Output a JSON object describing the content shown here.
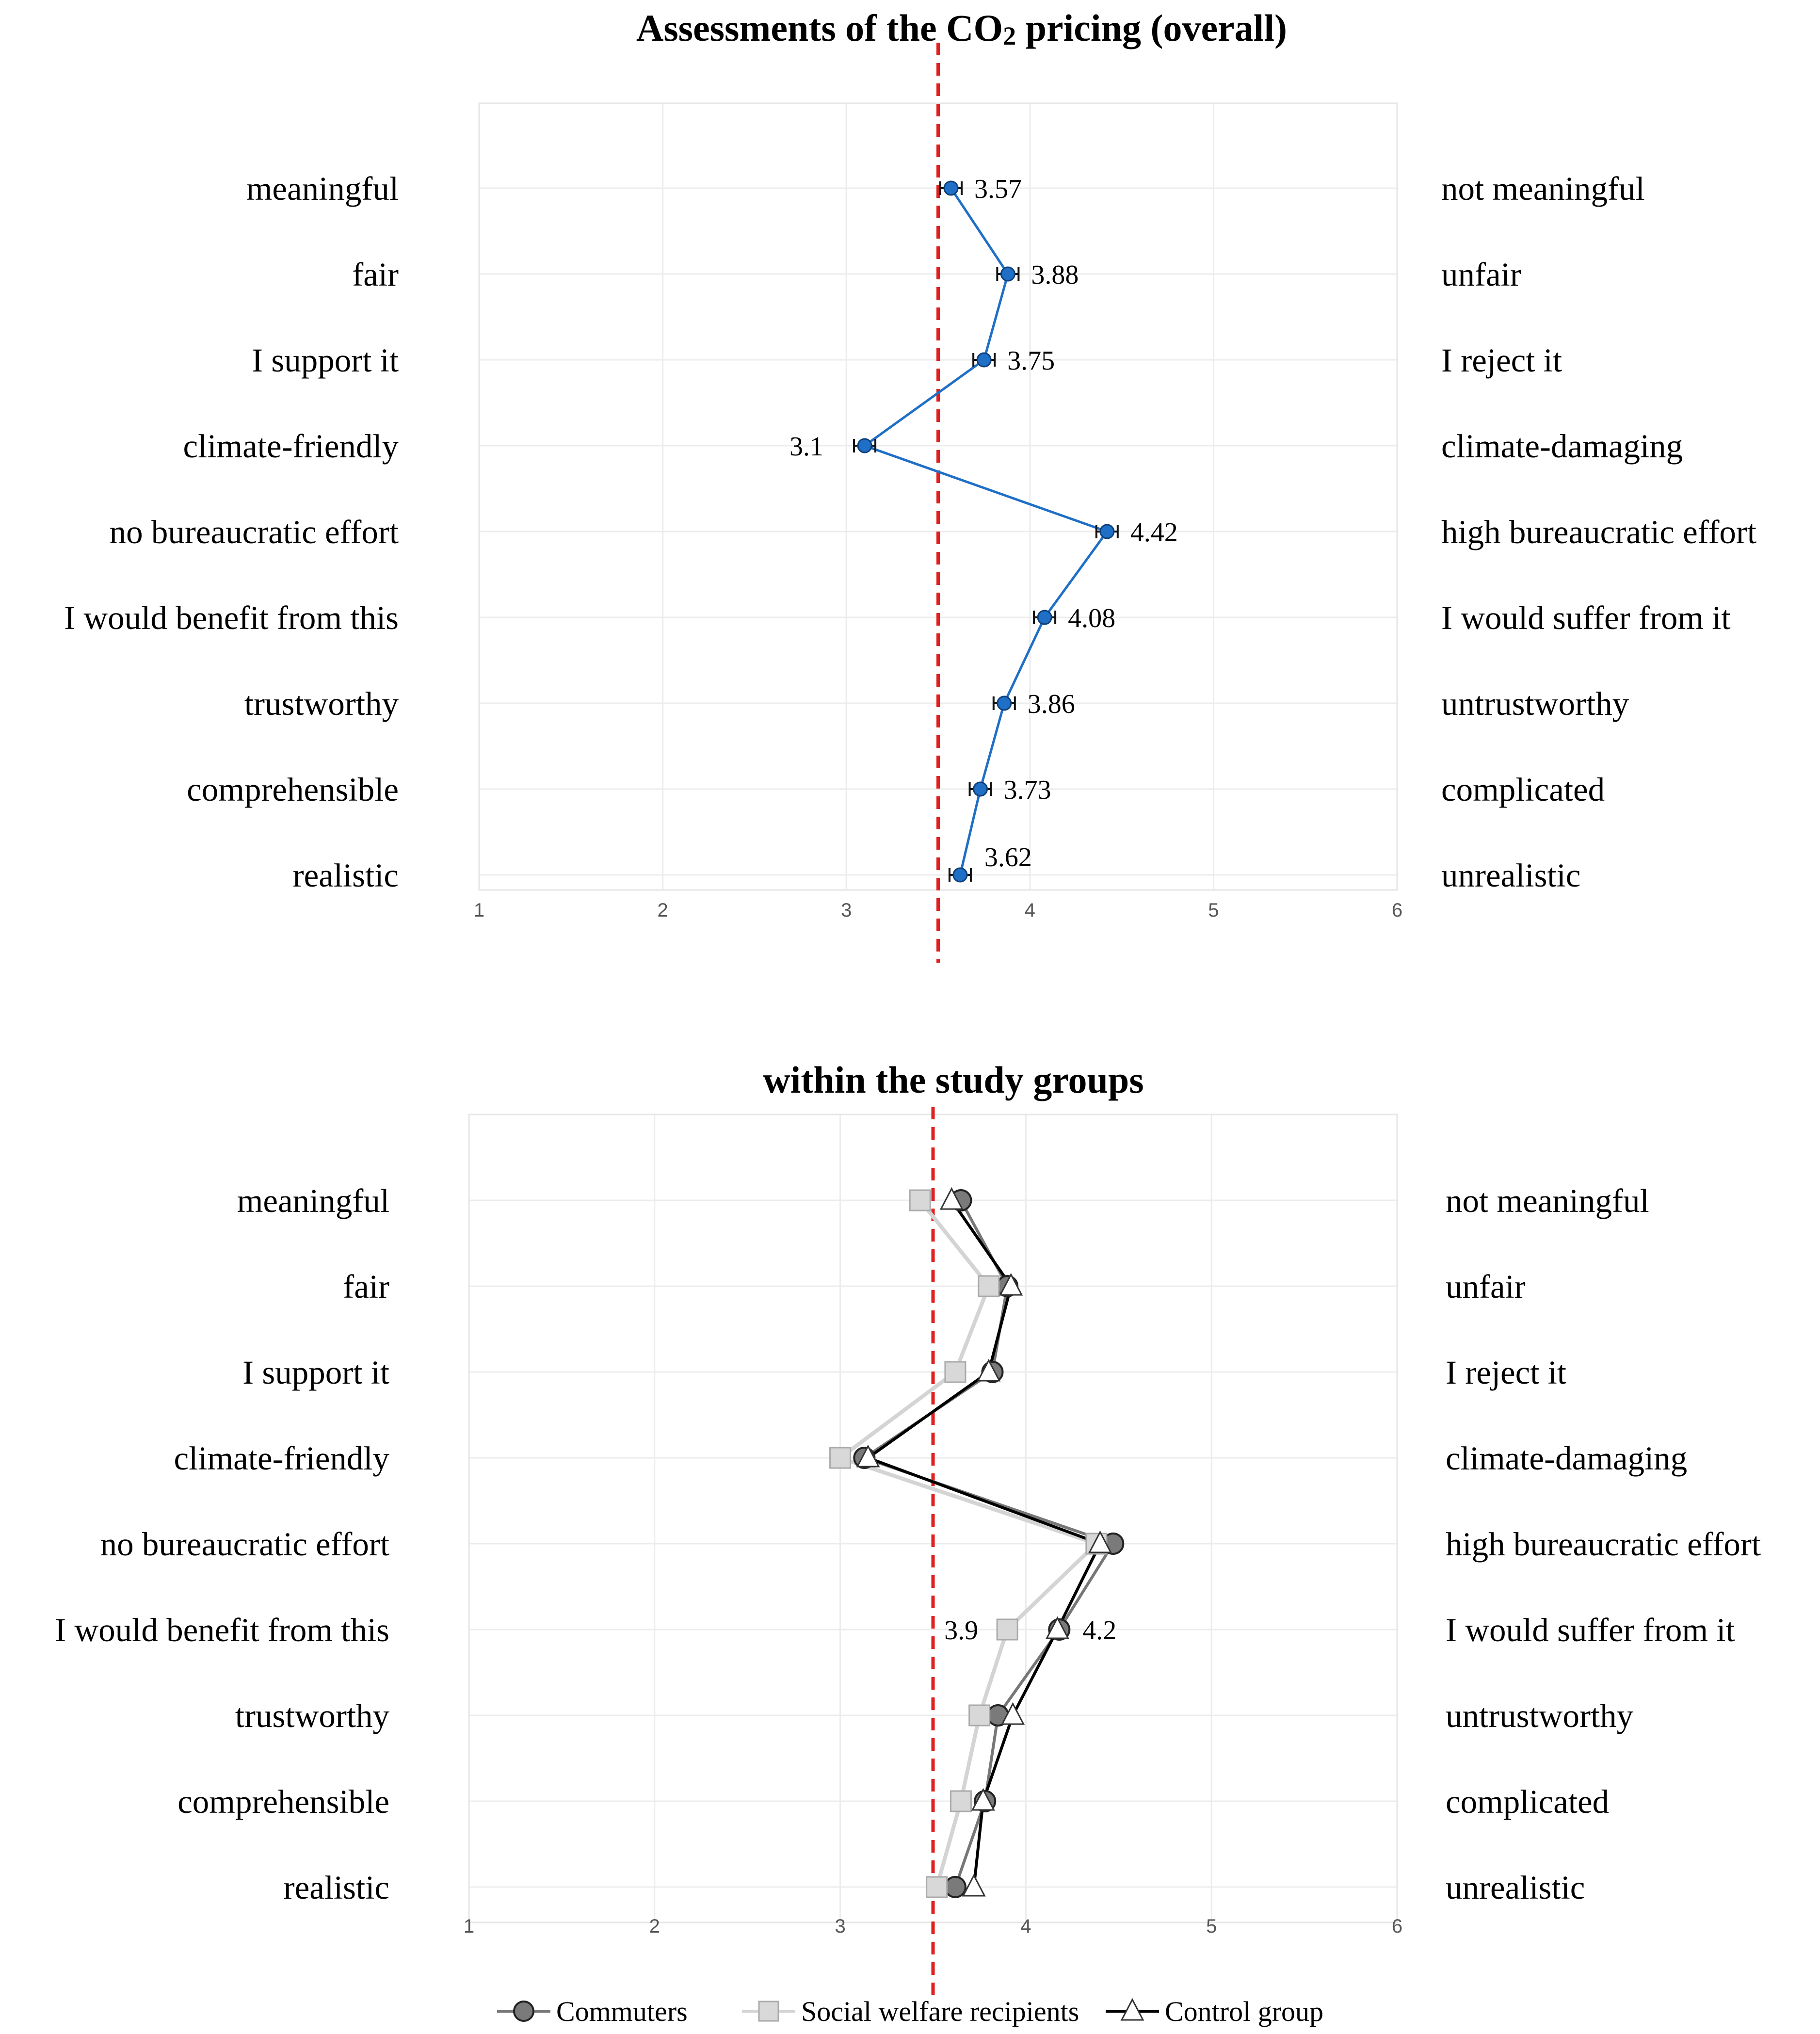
{
  "chart_data": [
    {
      "type": "line",
      "title": "Assessments of the CO2 pricing (overall)",
      "title_parts": [
        "Assessments of the CO",
        "2",
        " pricing (overall)"
      ],
      "xlim": [
        1,
        6
      ],
      "xticks": [
        "1",
        "2",
        "3",
        "4",
        "5",
        "6"
      ],
      "reference_line": 3.5,
      "left_labels": [
        "meaningful",
        "fair",
        "I support it",
        "climate-friendly",
        "no bureaucratic effort",
        "I would benefit from this",
        "trustworthy",
        "comprehensible",
        "realistic"
      ],
      "right_labels": [
        "not meaningful",
        "unfair",
        "I reject it",
        "climate-damaging",
        "high bureaucratic effort",
        "I would suffer from it",
        "untrustworthy",
        "complicated",
        "unrealistic"
      ],
      "series": [
        {
          "name": "overall",
          "color": "#1f6fc6",
          "values": [
            3.57,
            3.88,
            3.75,
            3.1,
            4.42,
            4.08,
            3.86,
            3.73,
            3.62
          ]
        }
      ],
      "value_labels": [
        "3.57",
        "3.88",
        "3.75",
        "3.1",
        "4.42",
        "4.08",
        "3.86",
        "3.73",
        "3.62"
      ]
    },
    {
      "type": "line",
      "title": "within the study groups",
      "xlim": [
        1,
        6
      ],
      "xticks": [
        "1",
        "2",
        "3",
        "4",
        "5",
        "6"
      ],
      "reference_line": 3.5,
      "left_labels": [
        "meaningful",
        "fair",
        "I support it",
        "climate-friendly",
        "no bureaucratic effort",
        "I would benefit from this",
        "trustworthy",
        "comprehensible",
        "realistic"
      ],
      "right_labels": [
        "not meaningful",
        "unfair",
        "I reject it",
        "climate-damaging",
        "high bureaucratic effort",
        "I would suffer from it",
        "untrustworthy",
        "complicated",
        "unrealistic"
      ],
      "series": [
        {
          "name": "Commuters",
          "marker": "circle",
          "line_color": "#777777",
          "fill": "#7a7a7a",
          "values": [
            3.65,
            3.9,
            3.82,
            3.13,
            4.47,
            4.18,
            3.85,
            3.78,
            3.62
          ]
        },
        {
          "name": "Social welfare recipients",
          "marker": "square",
          "line_color": "#d4d4d4",
          "fill": "#d8d8d8",
          "values": [
            3.43,
            3.8,
            3.62,
            3.0,
            4.38,
            3.9,
            3.75,
            3.65,
            3.52
          ]
        },
        {
          "name": "Control group",
          "marker": "triangle",
          "line_color": "#000000",
          "fill": "#ffffff",
          "values": [
            3.6,
            3.92,
            3.8,
            3.15,
            4.4,
            4.17,
            3.93,
            3.77,
            3.72
          ]
        }
      ],
      "annotations": [
        {
          "text": "3.9",
          "x": 3.9,
          "row": 5
        },
        {
          "text": "4.2",
          "x": 4.18,
          "row": 5
        }
      ]
    }
  ]
}
